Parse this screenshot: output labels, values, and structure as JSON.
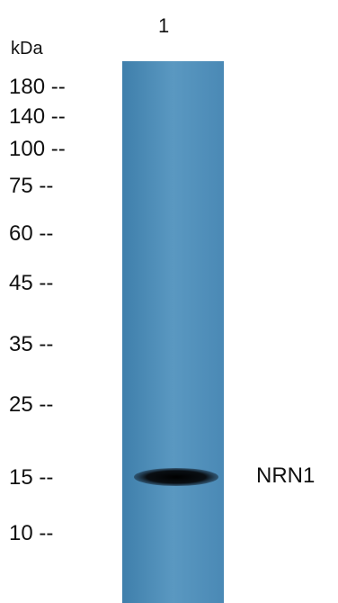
{
  "unit_label": "kDa",
  "lane_label": "1",
  "markers": [
    "180 --",
    "140 --",
    "100 --",
    "75 --",
    "60 --",
    "45 --",
    "35 --",
    "25 --",
    "15 --",
    "10 --"
  ],
  "band_label": "NRN1",
  "colors": {
    "membrane": "#4f8db8",
    "band": "#0a0f14",
    "text": "#111111"
  }
}
